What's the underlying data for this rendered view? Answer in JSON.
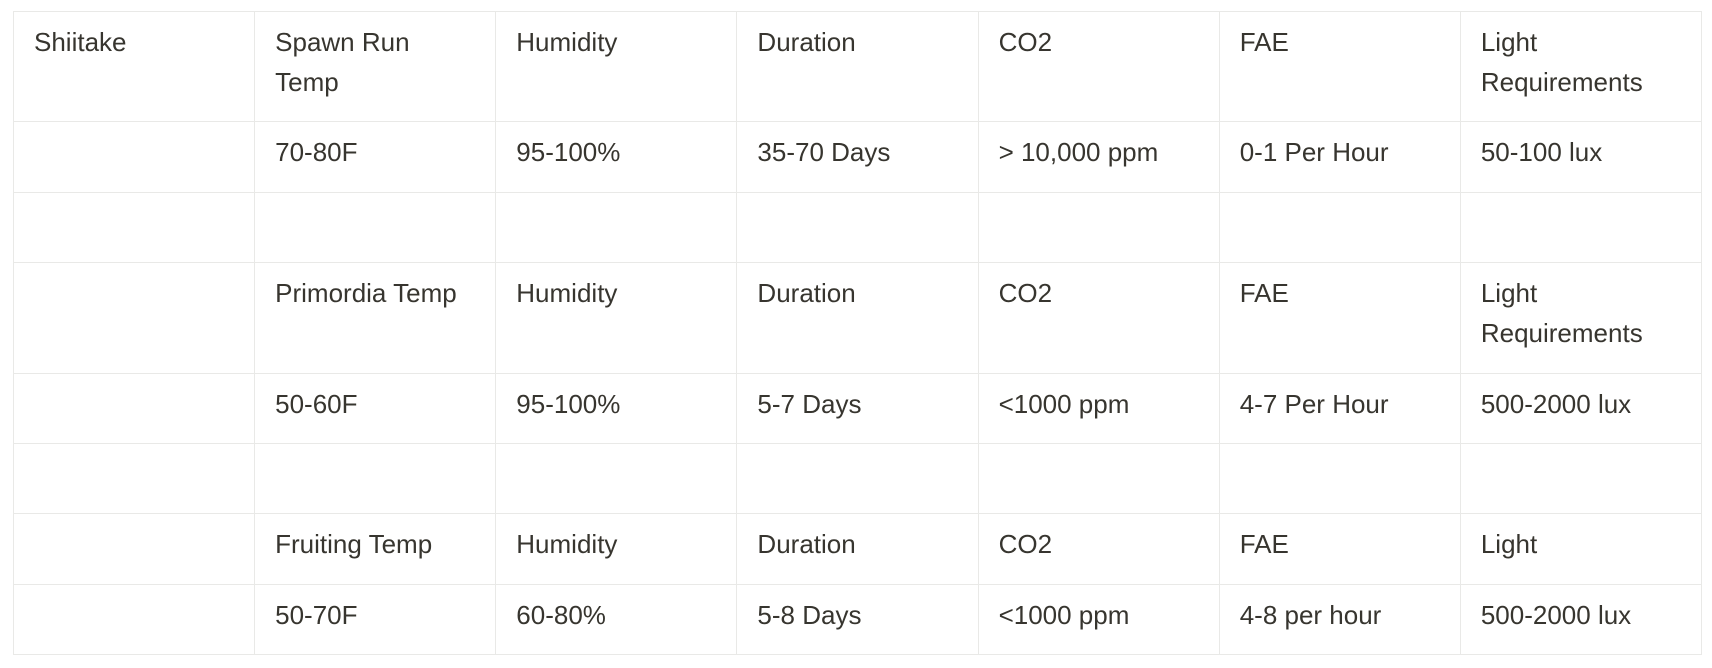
{
  "table": {
    "rows": [
      [
        "Shiitake",
        "Spawn Run Temp",
        "Humidity",
        "Duration",
        "CO2",
        "FAE",
        "Light Requirements"
      ],
      [
        null,
        "70-80F",
        "95-100%",
        "35-70 Days",
        "> 10,000 ppm",
        "0-1 Per Hour",
        "50-100 lux"
      ],
      [
        null,
        null,
        null,
        null,
        null,
        null,
        null
      ],
      [
        null,
        "Primordia Temp",
        "Humidity",
        "Duration",
        "CO2",
        "FAE",
        "Light Requirements"
      ],
      [
        null,
        "50-60F",
        "95-100%",
        "5-7 Days",
        "<1000 ppm",
        "4-7 Per Hour",
        "500-2000 lux"
      ],
      [
        null,
        null,
        null,
        null,
        null,
        null,
        null
      ],
      [
        null,
        "Fruiting Temp",
        "Humidity",
        "Duration",
        "CO2",
        "FAE",
        "Light"
      ],
      [
        null,
        "50-70F",
        "60-80%",
        "5-8 Days",
        "<1000 ppm",
        "4-8 per hour",
        "500-2000 lux"
      ]
    ]
  }
}
